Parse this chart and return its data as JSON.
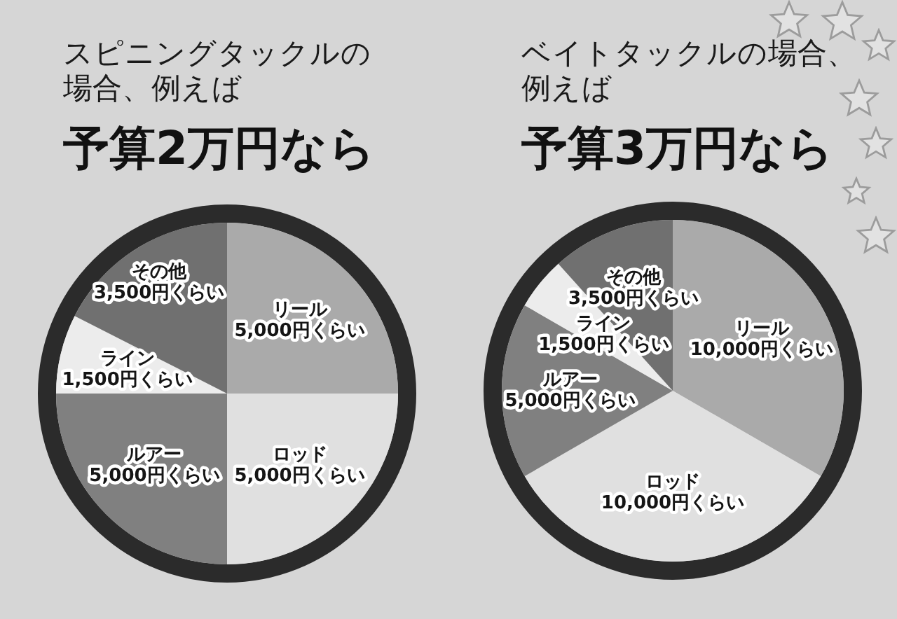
{
  "chart_data": [
    {
      "type": "pie",
      "title": "スピニングタックルの場合、例えば",
      "subtitle": "予算2万円なら",
      "categories": [
        "リール",
        "ロッド",
        "ルアー",
        "ライン",
        "その他"
      ],
      "values": [
        5000,
        5000,
        5000,
        1500,
        3500
      ],
      "value_labels": [
        "5,000円くらい",
        "5,000円くらい",
        "5,000円くらい",
        "1,500円くらい",
        "3,500円くらい"
      ],
      "colors": [
        "#aaaaaa",
        "#e0e0e0",
        "#808080",
        "#ececec",
        "#707070"
      ]
    },
    {
      "type": "pie",
      "title": "ベイトタックルの場合、例えば",
      "subtitle": "予算3万円なら",
      "categories": [
        "リール",
        "ロッド",
        "ルアー",
        "ライン",
        "その他"
      ],
      "values": [
        10000,
        10000,
        5000,
        1500,
        3500
      ],
      "value_labels": [
        "10,000円くらい",
        "10,000円くらい",
        "5,000円くらい",
        "1,500円くらい",
        "3,500円くらい"
      ],
      "colors": [
        "#aaaaaa",
        "#e0e0e0",
        "#808080",
        "#ececec",
        "#707070"
      ]
    }
  ]
}
